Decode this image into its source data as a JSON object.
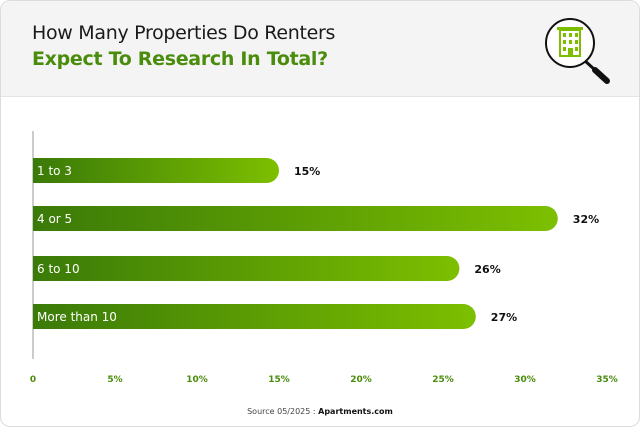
{
  "header": {
    "title_line1": "How Many Properties Do Renters",
    "title_line2": "Expect To Research In Total?",
    "icon": "building-magnifier-icon"
  },
  "chart_data": {
    "type": "bar",
    "orientation": "horizontal",
    "categories": [
      "1 to 3",
      "4 or 5",
      "6 to 10",
      "More than 10"
    ],
    "values": [
      15,
      32,
      26,
      27
    ],
    "data_labels": [
      "15%",
      "32%",
      "26%",
      "27%"
    ],
    "xlim": [
      0,
      35
    ],
    "x_ticks": [
      "0",
      "5%",
      "10%",
      "15%",
      "20%",
      "25%",
      "30%",
      "35%"
    ],
    "grid": false,
    "colors": {
      "bar_start": "#3a7a08",
      "bar_end": "#7dbf00",
      "tick": "#4a8c0c"
    }
  },
  "footer": {
    "source_prefix": "Source 05/2025 : ",
    "source_name": "Apartments.com"
  }
}
